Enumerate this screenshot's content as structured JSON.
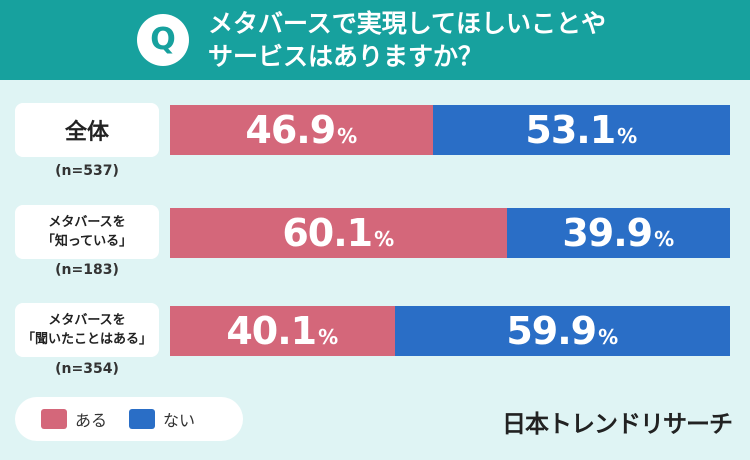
{
  "header": {
    "q_mark": "Q",
    "title_line1": "メタバースで実現してほしいことや",
    "title_line2": "サービスはありますか？"
  },
  "chart_data": {
    "type": "bar",
    "stacked": true,
    "orientation": "horizontal",
    "categories": [
      {
        "line1": "全体",
        "line2": "",
        "n": "(n=537)"
      },
      {
        "line1": "メタバースを",
        "line2": "「知っている」",
        "n": "(n=183)"
      },
      {
        "line1": "メタバースを",
        "line2": "「聞いたことはある」",
        "n": "(n=354)"
      }
    ],
    "series": [
      {
        "name": "ある",
        "color": "#d4677a",
        "values": [
          46.9,
          60.1,
          40.1
        ]
      },
      {
        "name": "ない",
        "color": "#2a6ec6",
        "values": [
          53.1,
          39.9,
          59.9
        ]
      }
    ],
    "unit": "%",
    "xlim": [
      0,
      100
    ],
    "legend_position": "bottom-left"
  },
  "brand": "日本トレンドリサーチ"
}
